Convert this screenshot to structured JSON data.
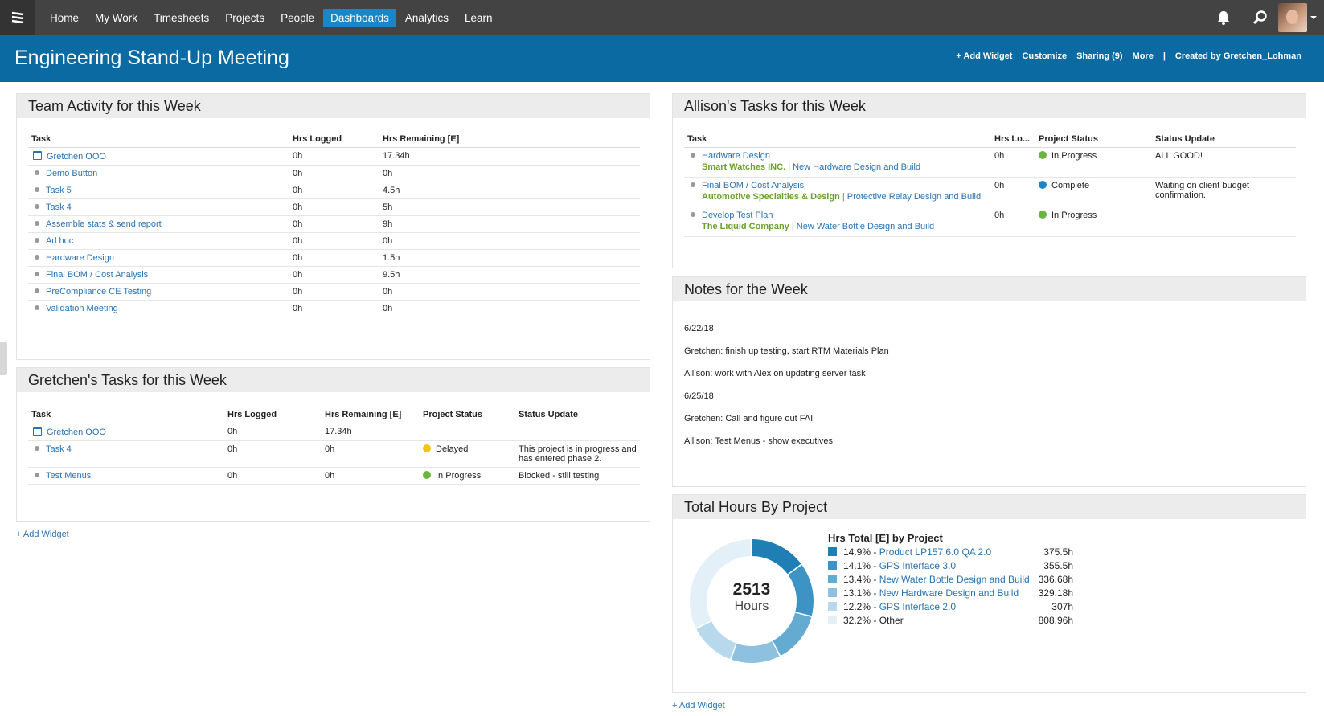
{
  "nav": {
    "items": [
      "Home",
      "My Work",
      "Timesheets",
      "Projects",
      "People",
      "Dashboards",
      "Analytics",
      "Learn"
    ],
    "active": "Dashboards"
  },
  "header": {
    "title": "Engineering Stand-Up Meeting",
    "add_widget": "+ Add Widget",
    "customize": "Customize",
    "sharing": "Sharing (9)",
    "more": "More",
    "separator": "|",
    "created_by": "Created by Gretchen_Lohman"
  },
  "team_activity": {
    "title": "Team Activity for this Week",
    "columns": [
      "Task",
      "Hrs Logged",
      "Hrs Remaining [E]"
    ],
    "rows": [
      {
        "task": "Gretchen OOO",
        "logged": "0h",
        "remaining": "17.34h",
        "icon": "calendar-icon"
      },
      {
        "task": "Demo Button",
        "logged": "0h",
        "remaining": "0h",
        "icon": "bullet"
      },
      {
        "task": "Task 5",
        "logged": "0h",
        "remaining": "4.5h",
        "icon": "bullet"
      },
      {
        "task": "Task 4",
        "logged": "0h",
        "remaining": "5h",
        "icon": "bullet"
      },
      {
        "task": "Assemble stats & send report",
        "logged": "0h",
        "remaining": "9h",
        "icon": "bullet"
      },
      {
        "task": "Ad hoc",
        "logged": "0h",
        "remaining": "0h",
        "icon": "bullet"
      },
      {
        "task": "Hardware Design",
        "logged": "0h",
        "remaining": "1.5h",
        "icon": "bullet"
      },
      {
        "task": "Final BOM / Cost Analysis",
        "logged": "0h",
        "remaining": "9.5h",
        "icon": "bullet"
      },
      {
        "task": "PreCompliance CE Testing",
        "logged": "0h",
        "remaining": "0h",
        "icon": "bullet"
      },
      {
        "task": "Validation Meeting",
        "logged": "0h",
        "remaining": "0h",
        "icon": "bullet"
      }
    ]
  },
  "gretchen_tasks": {
    "title": "Gretchen's Tasks for this Week",
    "columns": [
      "Task",
      "Hrs Logged",
      "Hrs Remaining [E]",
      "Project Status",
      "Status Update"
    ],
    "rows": [
      {
        "task": "Gretchen OOO",
        "logged": "0h",
        "remaining": "17.34h",
        "status": "",
        "status_color": "",
        "update": "",
        "icon": "calendar-icon"
      },
      {
        "task": "Task 4",
        "logged": "0h",
        "remaining": "0h",
        "status": "Delayed",
        "status_color": "#f0c419",
        "update": "This project is in progress and has entered phase 2.",
        "icon": "bullet"
      },
      {
        "task": "Test Menus",
        "logged": "0h",
        "remaining": "0h",
        "status": "In Progress",
        "status_color": "#6db33f",
        "update": "Blocked - still testing",
        "icon": "bullet"
      }
    ]
  },
  "left_add_widget": "+ Add Widget",
  "allison_tasks": {
    "title": "Allison's Tasks for this Week",
    "columns": [
      "Task",
      "Hrs Lo...",
      "Project Status",
      "Status Update"
    ],
    "rows": [
      {
        "task": "Hardware Design",
        "client": "Smart Watches INC.",
        "project": "New Hardware Design and Build",
        "logged": "0h",
        "status": "In Progress",
        "status_color": "#6db33f",
        "update": "ALL GOOD!"
      },
      {
        "task": "Final BOM / Cost Analysis",
        "client": "Automotive Specialties & Design",
        "project": "Protective Relay Design and Build",
        "logged": "0h",
        "status": "Complete",
        "status_color": "#1a86c8",
        "update": "Waiting on client budget confirmation."
      },
      {
        "task": "Develop Test Plan",
        "client": "The Liquid Company",
        "project": "New Water Bottle Design and Build",
        "logged": "0h",
        "status": "In Progress",
        "status_color": "#6db33f",
        "update": ""
      }
    ]
  },
  "notes": {
    "title": "Notes for the Week",
    "lines": [
      "6/22/18",
      "Gretchen: finish up testing, start RTM Materials Plan",
      "Allison: work with Alex on updating server task",
      "6/25/18",
      "Gretchen: Call and figure out FAI",
      "Allison: Test Menus - show executives"
    ]
  },
  "hours_chart": {
    "title": "Total Hours By Project",
    "center_value": "2513",
    "center_label": "Hours",
    "legend_title": "Hrs Total [E] by Project"
  },
  "right_add_widget": "+ Add Widget",
  "chart_data": {
    "type": "pie",
    "title": "Hrs Total [E] by Project",
    "total": 2513,
    "slices": [
      {
        "pct": "14.9%",
        "label": "Product LP157 6.0 QA 2.0",
        "value": "375.5h",
        "fraction": 0.149,
        "color": "#1f7fb5"
      },
      {
        "pct": "14.1%",
        "label": "GPS Interface 3.0",
        "value": "355.5h",
        "fraction": 0.141,
        "color": "#3d93c4"
      },
      {
        "pct": "13.4%",
        "label": "New Water Bottle Design and Build",
        "value": "336.68h",
        "fraction": 0.134,
        "color": "#65aad1"
      },
      {
        "pct": "13.1%",
        "label": "New Hardware Design and Build",
        "value": "329.18h",
        "fraction": 0.131,
        "color": "#8ec1df"
      },
      {
        "pct": "12.2%",
        "label": "GPS Interface 2.0",
        "value": "307h",
        "fraction": 0.122,
        "color": "#b8d8ec"
      },
      {
        "pct": "32.2%",
        "label": "Other",
        "value": "808.96h",
        "fraction": 0.322,
        "color": "#e3f0f8"
      }
    ]
  }
}
